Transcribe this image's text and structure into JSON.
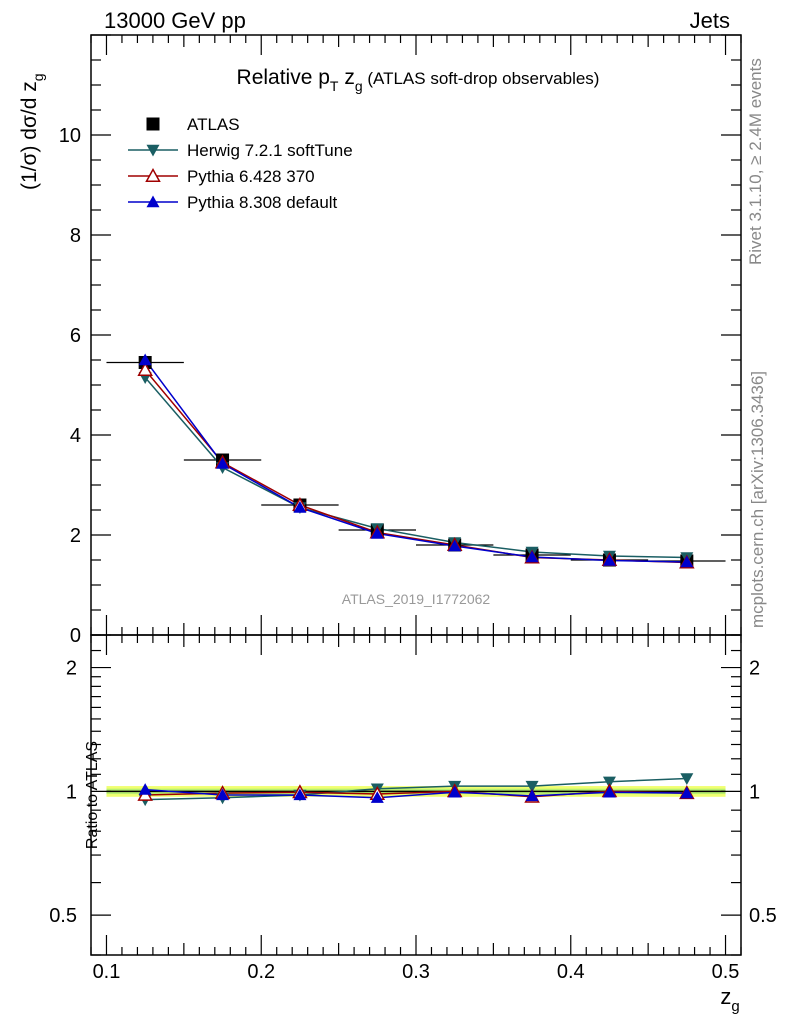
{
  "header": {
    "left": "13000 GeV pp",
    "right": "Jets"
  },
  "side": {
    "rivet": "Rivet 3.1.10, ≥ 2.4M events",
    "mcplots": "mcplots.cern.ch [arXiv:1306.3436]"
  },
  "colors": {
    "atlas": "#000000",
    "herwig": "#1a5e63",
    "pythia6": "#a00000",
    "pythia8": "#0000cc",
    "band_outer": "#f0ff70",
    "band_inner": "#b8f070"
  },
  "chart_data": [
    {
      "type": "line",
      "title": "Relative p_T z_g (ATLAS soft-drop observables)",
      "title_parts": {
        "main": "Relative p",
        "sub1": "T",
        "mid": " z",
        "sub2": "g",
        "rest": " (ATLAS soft-drop observables)"
      },
      "ylabel": "(1/σ) dσ/d z_g",
      "ylabel_parts": {
        "main": "(1/σ) dσ/d z",
        "sub": "g"
      },
      "xlim": [
        0.09,
        0.51
      ],
      "ylim": [
        0,
        12
      ],
      "ytick_labels": [
        "0",
        "2",
        "4",
        "6",
        "8",
        "10"
      ],
      "watermark": "ATLAS_2019_I1772062",
      "legend_position": "top-left",
      "x": [
        0.125,
        0.175,
        0.225,
        0.275,
        0.325,
        0.375,
        0.425,
        0.475
      ],
      "series": [
        {
          "key": "atlas",
          "name": "ATLAS",
          "marker": "square",
          "values": [
            5.45,
            3.5,
            2.6,
            2.1,
            1.8,
            1.6,
            1.5,
            1.48
          ]
        },
        {
          "key": "herwig",
          "name": "Herwig 7.2.1 softTune",
          "marker": "triangle-down",
          "values": [
            5.15,
            3.35,
            2.55,
            2.13,
            1.85,
            1.66,
            1.58,
            1.55
          ]
        },
        {
          "key": "pythia6",
          "name": "Pythia 6.428 370",
          "marker": "triangle-up-open",
          "values": [
            5.3,
            3.45,
            2.6,
            2.05,
            1.8,
            1.55,
            1.5,
            1.45
          ]
        },
        {
          "key": "pythia8",
          "name": "Pythia 8.308 default",
          "marker": "triangle-up",
          "values": [
            5.5,
            3.43,
            2.55,
            2.03,
            1.78,
            1.56,
            1.49,
            1.46
          ]
        }
      ]
    },
    {
      "type": "line",
      "ylabel": "Ratio to ATLAS",
      "xlabel": "z_g",
      "xlabel_parts": {
        "main": "z",
        "sub": "g"
      },
      "xlim": [
        0.09,
        0.51
      ],
      "ylim": [
        0.4,
        2.4
      ],
      "yscale": "log",
      "xtick_labels": [
        "0.1",
        "0.2",
        "0.3",
        "0.4",
        "0.5"
      ],
      "ytick_labels": [
        "0.5",
        "1",
        "2"
      ],
      "x": [
        0.125,
        0.175,
        0.225,
        0.275,
        0.325,
        0.375,
        0.425,
        0.475
      ],
      "band": {
        "lower": 0.97,
        "upper": 1.03
      },
      "series": [
        {
          "key": "herwig",
          "name": "Herwig 7.2.1 softTune",
          "marker": "triangle-down",
          "values": [
            0.955,
            0.965,
            0.98,
            1.015,
            1.03,
            1.03,
            1.055,
            1.075
          ]
        },
        {
          "key": "pythia6",
          "name": "Pythia 6.428 370",
          "marker": "triangle-up-open",
          "values": [
            0.98,
            0.99,
            0.995,
            0.985,
            1.0,
            0.97,
            1.0,
            0.99
          ]
        },
        {
          "key": "pythia8",
          "name": "Pythia 8.308 default",
          "marker": "triangle-up",
          "values": [
            1.01,
            0.98,
            0.98,
            0.965,
            0.995,
            0.975,
            0.995,
            0.99
          ]
        }
      ]
    }
  ]
}
